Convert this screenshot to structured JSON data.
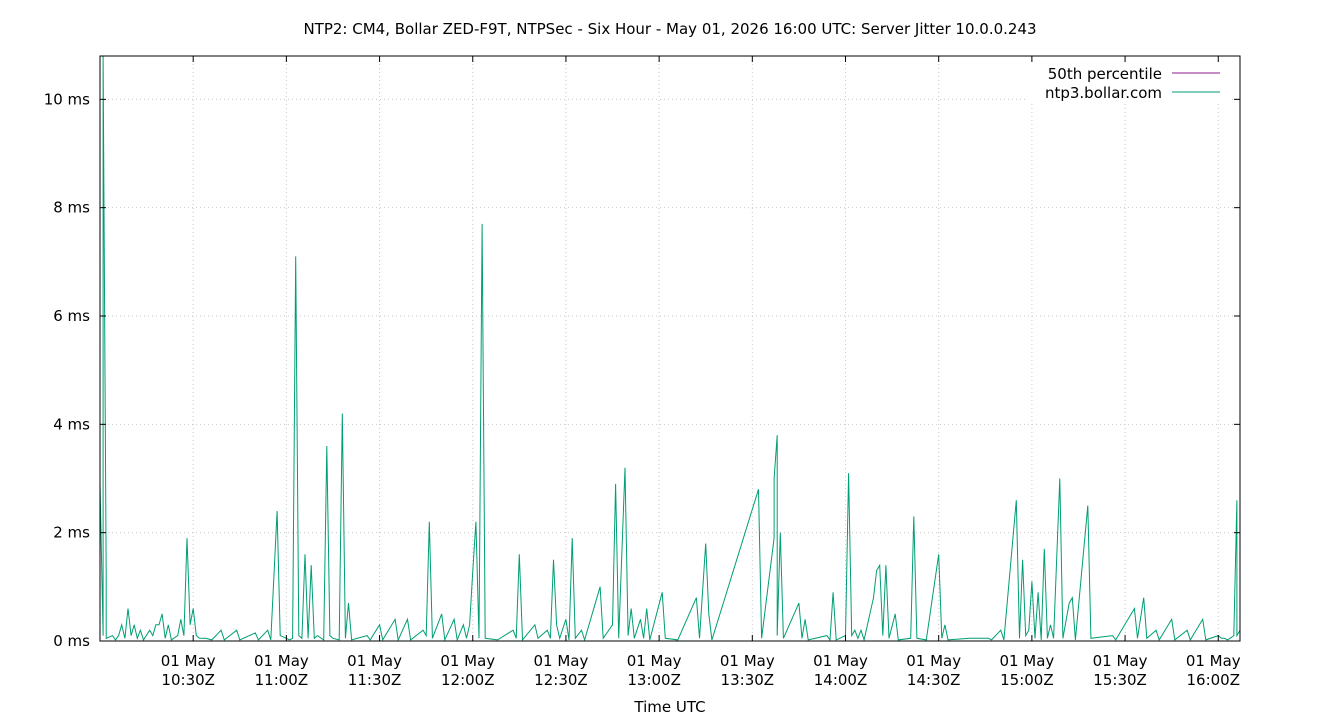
{
  "chart_data": {
    "type": "line",
    "title": "NTP2: CM4, Bollar ZED-F9T, NTPSec - Six Hour - May 01, 2026 16:00 UTC: Server Jitter 10.0.0.243",
    "xlabel": "Time UTC",
    "ylabel": "",
    "ylim": [
      0,
      10.8
    ],
    "xlim": [
      "2026-05-01T10:00Z",
      "2026-05-01T16:07Z"
    ],
    "yticks": [
      0,
      2,
      4,
      6,
      8,
      10
    ],
    "ytick_labels": [
      "0 ms",
      "2 ms",
      "4 ms",
      "6 ms",
      "8 ms",
      "10 ms"
    ],
    "xticks": [
      {
        "t": "10:30",
        "date": "01 May",
        "time": "10:30Z"
      },
      {
        "t": "11:00",
        "date": "01 May",
        "time": "11:00Z"
      },
      {
        "t": "11:30",
        "date": "01 May",
        "time": "11:30Z"
      },
      {
        "t": "12:00",
        "date": "01 May",
        "time": "12:00Z"
      },
      {
        "t": "12:30",
        "date": "01 May",
        "time": "12:30Z"
      },
      {
        "t": "13:00",
        "date": "01 May",
        "time": "13:00Z"
      },
      {
        "t": "13:30",
        "date": "01 May",
        "time": "13:30Z"
      },
      {
        "t": "14:00",
        "date": "01 May",
        "time": "14:00Z"
      },
      {
        "t": "14:30",
        "date": "01 May",
        "time": "14:30Z"
      },
      {
        "t": "15:00",
        "date": "01 May",
        "time": "15:00Z"
      },
      {
        "t": "15:30",
        "date": "01 May",
        "time": "15:30Z"
      },
      {
        "t": "16:00",
        "date": "01 May",
        "time": "16:00Z"
      }
    ],
    "grid": true,
    "legend_position": "top-right",
    "series": [
      {
        "name": "50th percentile",
        "color": "#8b1a8b",
        "points": [
          {
            "t": "10:00",
            "y": 0.0
          },
          {
            "t": "16:07",
            "y": 0.0
          }
        ]
      },
      {
        "name": "ntp3.bollar.com",
        "color": "#009e73",
        "points": [
          {
            "t": "10:00",
            "y": 0.0
          },
          {
            "t": "10:00",
            "y": 2.9
          },
          {
            "t": "10:01",
            "y": 0.1
          },
          {
            "t": "10:01",
            "y": 10.8
          },
          {
            "t": "10:02",
            "y": 1.2
          },
          {
            "t": "10:02",
            "y": 0.05
          },
          {
            "t": "10:04",
            "y": 0.1
          },
          {
            "t": "10:05",
            "y": 0.02
          },
          {
            "t": "10:06",
            "y": 0.1
          },
          {
            "t": "10:07",
            "y": 0.3
          },
          {
            "t": "10:08",
            "y": 0.05
          },
          {
            "t": "10:09",
            "y": 0.6
          },
          {
            "t": "10:10",
            "y": 0.1
          },
          {
            "t": "10:11",
            "y": 0.3
          },
          {
            "t": "10:12",
            "y": 0.05
          },
          {
            "t": "10:13",
            "y": 0.2
          },
          {
            "t": "10:14",
            "y": 0.02
          },
          {
            "t": "10:16",
            "y": 0.2
          },
          {
            "t": "10:17",
            "y": 0.1
          },
          {
            "t": "10:18",
            "y": 0.3
          },
          {
            "t": "10:19",
            "y": 0.3
          },
          {
            "t": "10:20",
            "y": 0.5
          },
          {
            "t": "10:21",
            "y": 0.05
          },
          {
            "t": "10:22",
            "y": 0.3
          },
          {
            "t": "10:23",
            "y": 0.02
          },
          {
            "t": "10:25",
            "y": 0.1
          },
          {
            "t": "10:26",
            "y": 0.4
          },
          {
            "t": "10:27",
            "y": 0.1
          },
          {
            "t": "10:28",
            "y": 1.9
          },
          {
            "t": "10:29",
            "y": 0.3
          },
          {
            "t": "10:30",
            "y": 0.6
          },
          {
            "t": "10:31",
            "y": 0.1
          },
          {
            "t": "10:32",
            "y": 0.05
          },
          {
            "t": "10:34",
            "y": 0.05
          },
          {
            "t": "10:36",
            "y": 0.02
          },
          {
            "t": "10:39",
            "y": 0.2
          },
          {
            "t": "10:40",
            "y": 0.02
          },
          {
            "t": "10:44",
            "y": 0.2
          },
          {
            "t": "10:45",
            "y": 0.02
          },
          {
            "t": "10:50",
            "y": 0.15
          },
          {
            "t": "10:51",
            "y": 0.02
          },
          {
            "t": "10:54",
            "y": 0.2
          },
          {
            "t": "10:55",
            "y": 0.02
          },
          {
            "t": "10:57",
            "y": 2.4
          },
          {
            "t": "10:58",
            "y": 0.1
          },
          {
            "t": "11:00",
            "y": 0.05
          },
          {
            "t": "11:01",
            "y": 0.02
          },
          {
            "t": "11:02",
            "y": 0.05
          },
          {
            "t": "11:03",
            "y": 7.1
          },
          {
            "t": "11:04",
            "y": 0.1
          },
          {
            "t": "11:05",
            "y": 0.05
          },
          {
            "t": "11:06",
            "y": 1.6
          },
          {
            "t": "11:07",
            "y": 0.05
          },
          {
            "t": "11:08",
            "y": 1.4
          },
          {
            "t": "11:09",
            "y": 0.05
          },
          {
            "t": "11:10",
            "y": 0.1
          },
          {
            "t": "11:12",
            "y": 0.02
          },
          {
            "t": "11:13",
            "y": 3.6
          },
          {
            "t": "11:14",
            "y": 0.1
          },
          {
            "t": "11:15",
            "y": 0.05
          },
          {
            "t": "11:17",
            "y": 0.02
          },
          {
            "t": "11:18",
            "y": 4.2
          },
          {
            "t": "11:19",
            "y": 0.05
          },
          {
            "t": "11:20",
            "y": 0.7
          },
          {
            "t": "11:21",
            "y": 0.02
          },
          {
            "t": "11:26",
            "y": 0.1
          },
          {
            "t": "11:27",
            "y": 0.02
          },
          {
            "t": "11:30",
            "y": 0.3
          },
          {
            "t": "11:31",
            "y": 0.02
          },
          {
            "t": "11:35",
            "y": 0.4
          },
          {
            "t": "11:36",
            "y": 0.02
          },
          {
            "t": "11:39",
            "y": 0.4
          },
          {
            "t": "11:40",
            "y": 0.02
          },
          {
            "t": "11:44",
            "y": 0.2
          },
          {
            "t": "11:45",
            "y": 0.1
          },
          {
            "t": "11:46",
            "y": 2.2
          },
          {
            "t": "11:47",
            "y": 0.05
          },
          {
            "t": "11:50",
            "y": 0.5
          },
          {
            "t": "11:51",
            "y": 0.02
          },
          {
            "t": "11:54",
            "y": 0.4
          },
          {
            "t": "11:55",
            "y": 0.02
          },
          {
            "t": "11:57",
            "y": 0.3
          },
          {
            "t": "11:58",
            "y": 0.05
          },
          {
            "t": "11:59",
            "y": 0.3
          },
          {
            "t": "12:00",
            "y": 1.3
          },
          {
            "t": "12:01",
            "y": 2.2
          },
          {
            "t": "12:02",
            "y": 0.05
          },
          {
            "t": "12:03",
            "y": 7.7
          },
          {
            "t": "12:04",
            "y": 0.05
          },
          {
            "t": "12:08",
            "y": 0.02
          },
          {
            "t": "12:13",
            "y": 0.2
          },
          {
            "t": "12:14",
            "y": 0.05
          },
          {
            "t": "12:15",
            "y": 1.6
          },
          {
            "t": "12:16",
            "y": 0.02
          },
          {
            "t": "12:20",
            "y": 0.3
          },
          {
            "t": "12:21",
            "y": 0.05
          },
          {
            "t": "12:24",
            "y": 0.2
          },
          {
            "t": "12:25",
            "y": 0.05
          },
          {
            "t": "12:26",
            "y": 1.5
          },
          {
            "t": "12:27",
            "y": 0.3
          },
          {
            "t": "12:28",
            "y": 0.05
          },
          {
            "t": "12:30",
            "y": 0.4
          },
          {
            "t": "12:31",
            "y": 0.02
          },
          {
            "t": "12:32",
            "y": 1.9
          },
          {
            "t": "12:33",
            "y": 0.05
          },
          {
            "t": "12:35",
            "y": 0.2
          },
          {
            "t": "12:36",
            "y": 0.02
          },
          {
            "t": "12:41",
            "y": 1.0
          },
          {
            "t": "12:42",
            "y": 0.05
          },
          {
            "t": "12:45",
            "y": 0.3
          },
          {
            "t": "12:46",
            "y": 2.9
          },
          {
            "t": "12:47",
            "y": 0.05
          },
          {
            "t": "12:49",
            "y": 3.2
          },
          {
            "t": "12:50",
            "y": 0.1
          },
          {
            "t": "12:51",
            "y": 0.6
          },
          {
            "t": "12:52",
            "y": 0.05
          },
          {
            "t": "12:54",
            "y": 0.4
          },
          {
            "t": "12:55",
            "y": 0.05
          },
          {
            "t": "12:56",
            "y": 0.6
          },
          {
            "t": "12:57",
            "y": 0.02
          },
          {
            "t": "13:01",
            "y": 0.9
          },
          {
            "t": "13:02",
            "y": 0.05
          },
          {
            "t": "13:06",
            "y": 0.02
          },
          {
            "t": "13:12",
            "y": 0.8
          },
          {
            "t": "13:13",
            "y": 0.05
          },
          {
            "t": "13:15",
            "y": 1.8
          },
          {
            "t": "13:16",
            "y": 0.5
          },
          {
            "t": "13:17",
            "y": 0.02
          },
          {
            "t": "13:32",
            "y": 2.8
          },
          {
            "t": "13:33",
            "y": 0.05
          },
          {
            "t": "13:37",
            "y": 1.9
          },
          {
            "t": "13:37",
            "y": 3.0
          },
          {
            "t": "13:38",
            "y": 3.8
          },
          {
            "t": "13:38",
            "y": 0.1
          },
          {
            "t": "13:39",
            "y": 2.0
          },
          {
            "t": "13:40",
            "y": 0.05
          },
          {
            "t": "13:45",
            "y": 0.7
          },
          {
            "t": "13:46",
            "y": 0.05
          },
          {
            "t": "13:47",
            "y": 0.4
          },
          {
            "t": "13:48",
            "y": 0.02
          },
          {
            "t": "13:54",
            "y": 0.1
          },
          {
            "t": "13:55",
            "y": 0.02
          },
          {
            "t": "13:56",
            "y": 0.9
          },
          {
            "t": "13:57",
            "y": 0.02
          },
          {
            "t": "14:00",
            "y": 0.1
          },
          {
            "t": "14:01",
            "y": 3.1
          },
          {
            "t": "14:02",
            "y": 0.1
          },
          {
            "t": "14:03",
            "y": 0.2
          },
          {
            "t": "14:04",
            "y": 0.05
          },
          {
            "t": "14:05",
            "y": 0.2
          },
          {
            "t": "14:06",
            "y": 0.02
          },
          {
            "t": "14:09",
            "y": 0.8
          },
          {
            "t": "14:10",
            "y": 1.3
          },
          {
            "t": "14:11",
            "y": 1.4
          },
          {
            "t": "14:12",
            "y": 0.1
          },
          {
            "t": "14:13",
            "y": 1.4
          },
          {
            "t": "14:14",
            "y": 0.05
          },
          {
            "t": "14:16",
            "y": 0.5
          },
          {
            "t": "14:17",
            "y": 0.02
          },
          {
            "t": "14:21",
            "y": 0.05
          },
          {
            "t": "14:22",
            "y": 2.3
          },
          {
            "t": "14:23",
            "y": 0.05
          },
          {
            "t": "14:26",
            "y": 0.02
          },
          {
            "t": "14:30",
            "y": 1.6
          },
          {
            "t": "14:31",
            "y": 0.05
          },
          {
            "t": "14:32",
            "y": 0.3
          },
          {
            "t": "14:33",
            "y": 0.02
          },
          {
            "t": "14:40",
            "y": 0.05
          },
          {
            "t": "14:46",
            "y": 0.05
          },
          {
            "t": "14:47",
            "y": 0.02
          },
          {
            "t": "14:50",
            "y": 0.2
          },
          {
            "t": "14:51",
            "y": 0.02
          },
          {
            "t": "14:55",
            "y": 2.6
          },
          {
            "t": "14:56",
            "y": 0.05
          },
          {
            "t": "14:57",
            "y": 1.5
          },
          {
            "t": "14:58",
            "y": 0.1
          },
          {
            "t": "14:59",
            "y": 0.2
          },
          {
            "t": "15:00",
            "y": 1.1
          },
          {
            "t": "15:01",
            "y": 0.05
          },
          {
            "t": "15:02",
            "y": 0.9
          },
          {
            "t": "15:03",
            "y": 0.02
          },
          {
            "t": "15:04",
            "y": 1.7
          },
          {
            "t": "15:05",
            "y": 0.05
          },
          {
            "t": "15:06",
            "y": 0.3
          },
          {
            "t": "15:07",
            "y": 0.05
          },
          {
            "t": "15:09",
            "y": 3.0
          },
          {
            "t": "15:10",
            "y": 0.05
          },
          {
            "t": "15:12",
            "y": 0.7
          },
          {
            "t": "15:13",
            "y": 0.8
          },
          {
            "t": "15:14",
            "y": 0.02
          },
          {
            "t": "15:18",
            "y": 2.5
          },
          {
            "t": "15:19",
            "y": 0.05
          },
          {
            "t": "15:26",
            "y": 0.1
          },
          {
            "t": "15:27",
            "y": 0.02
          },
          {
            "t": "15:33",
            "y": 0.6
          },
          {
            "t": "15:34",
            "y": 0.05
          },
          {
            "t": "15:36",
            "y": 0.8
          },
          {
            "t": "15:37",
            "y": 0.05
          },
          {
            "t": "15:40",
            "y": 0.2
          },
          {
            "t": "15:41",
            "y": 0.02
          },
          {
            "t": "15:45",
            "y": 0.4
          },
          {
            "t": "15:46",
            "y": 0.02
          },
          {
            "t": "15:50",
            "y": 0.2
          },
          {
            "t": "15:51",
            "y": 0.02
          },
          {
            "t": "15:55",
            "y": 0.4
          },
          {
            "t": "15:56",
            "y": 0.02
          },
          {
            "t": "16:00",
            "y": 0.1
          },
          {
            "t": "16:01",
            "y": 0.05
          },
          {
            "t": "16:02",
            "y": 0.05
          },
          {
            "t": "16:03",
            "y": 0.02
          },
          {
            "t": "16:05",
            "y": 0.1
          },
          {
            "t": "16:06",
            "y": 2.6
          },
          {
            "t": "16:06",
            "y": 0.1
          },
          {
            "t": "16:07",
            "y": 0.2
          }
        ]
      }
    ]
  }
}
